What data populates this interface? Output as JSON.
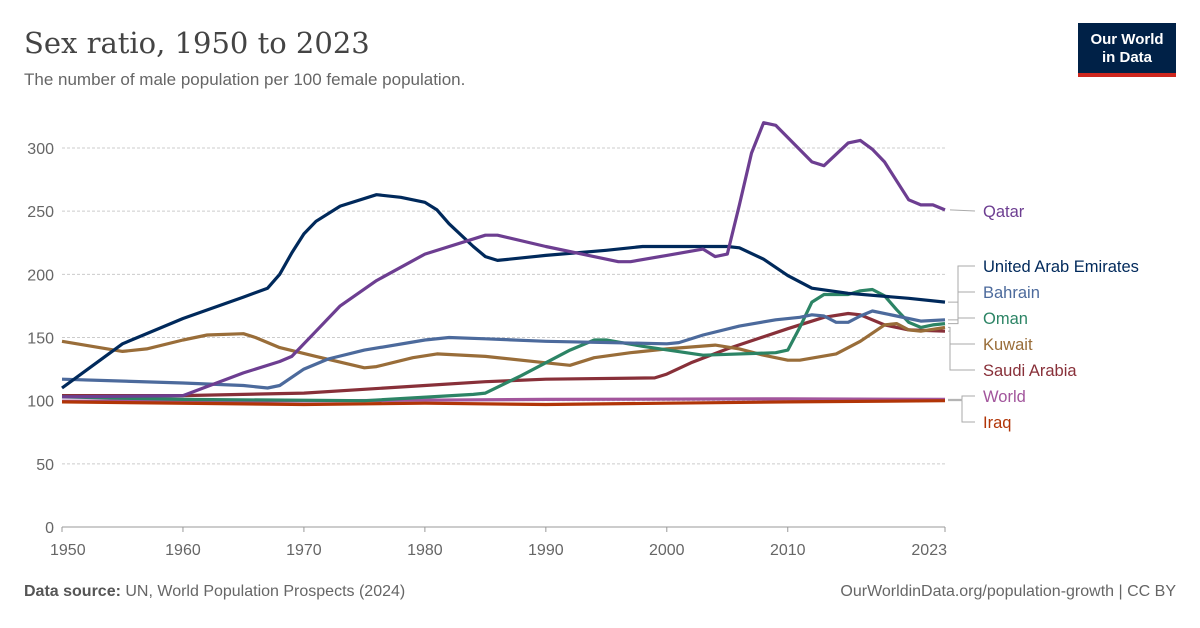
{
  "header": {
    "title": "Sex ratio, 1950 to 2023",
    "subtitle": "The number of male population per 100 female population."
  },
  "logo": {
    "line1": "Our World",
    "line2": "in Data"
  },
  "footer": {
    "source_label": "Data source:",
    "source": "UN, World Population Prospects (2024)",
    "credit": "OurWorldinData.org/population-growth | CC BY"
  },
  "chart_data": {
    "type": "line",
    "title": "Sex ratio, 1950 to 2023",
    "xlabel": "",
    "ylabel": "",
    "xlim": [
      1950,
      2023
    ],
    "ylim": [
      0,
      300
    ],
    "x_ticks": [
      "1950",
      "1960",
      "1970",
      "1980",
      "1990",
      "2000",
      "2010",
      "2023"
    ],
    "y_ticks": [
      "0",
      "50",
      "100",
      "150",
      "200",
      "250",
      "300"
    ],
    "grid": "horizontal dotted",
    "legend": "right, line-end labels",
    "series": [
      {
        "name": "Qatar",
        "color": "#6d3e91",
        "points": [
          [
            1950,
            103
          ],
          [
            1960,
            104
          ],
          [
            1965,
            122
          ],
          [
            1968,
            131
          ],
          [
            1969,
            135
          ],
          [
            1971,
            155
          ],
          [
            1973,
            175
          ],
          [
            1976,
            195
          ],
          [
            1980,
            216
          ],
          [
            1985,
            231
          ],
          [
            1986,
            231
          ],
          [
            1990,
            222
          ],
          [
            1996,
            210
          ],
          [
            1997,
            210
          ],
          [
            2000,
            215
          ],
          [
            2003,
            220
          ],
          [
            2004,
            214
          ],
          [
            2005,
            216
          ],
          [
            2006,
            255
          ],
          [
            2007,
            296
          ],
          [
            2008,
            320
          ],
          [
            2009,
            318
          ],
          [
            2012,
            289
          ],
          [
            2013,
            286
          ],
          [
            2015,
            304
          ],
          [
            2016,
            306
          ],
          [
            2017,
            299
          ],
          [
            2018,
            289
          ],
          [
            2020,
            259
          ],
          [
            2021,
            255
          ],
          [
            2022,
            255
          ],
          [
            2023,
            251
          ]
        ]
      },
      {
        "name": "United Arab Emirates",
        "color": "#00295b",
        "points": [
          [
            1950,
            110
          ],
          [
            1955,
            145
          ],
          [
            1960,
            165
          ],
          [
            1965,
            182
          ],
          [
            1967,
            189
          ],
          [
            1968,
            200
          ],
          [
            1969,
            217
          ],
          [
            1970,
            232
          ],
          [
            1971,
            242
          ],
          [
            1973,
            254
          ],
          [
            1976,
            263
          ],
          [
            1978,
            261
          ],
          [
            1980,
            257
          ],
          [
            1981,
            251
          ],
          [
            1982,
            240
          ],
          [
            1984,
            222
          ],
          [
            1985,
            214
          ],
          [
            1986,
            211
          ],
          [
            1990,
            215
          ],
          [
            1995,
            219
          ],
          [
            1998,
            222
          ],
          [
            2005,
            222
          ],
          [
            2006,
            221
          ],
          [
            2008,
            212
          ],
          [
            2010,
            199
          ],
          [
            2012,
            189
          ],
          [
            2015,
            185
          ],
          [
            2020,
            181
          ],
          [
            2023,
            178
          ]
        ]
      },
      {
        "name": "Bahrain",
        "color": "#4c6a9c",
        "points": [
          [
            1950,
            117
          ],
          [
            1960,
            114
          ],
          [
            1965,
            112
          ],
          [
            1967,
            110
          ],
          [
            1968,
            112
          ],
          [
            1970,
            125
          ],
          [
            1972,
            133
          ],
          [
            1975,
            140
          ],
          [
            1980,
            148
          ],
          [
            1982,
            150
          ],
          [
            1985,
            149
          ],
          [
            1990,
            147
          ],
          [
            2000,
            145
          ],
          [
            2001,
            146
          ],
          [
            2003,
            152
          ],
          [
            2006,
            159
          ],
          [
            2009,
            164
          ],
          [
            2011,
            166
          ],
          [
            2012,
            168
          ],
          [
            2013,
            167
          ],
          [
            2014,
            162
          ],
          [
            2015,
            162
          ],
          [
            2016,
            167
          ],
          [
            2017,
            171
          ],
          [
            2019,
            167
          ],
          [
            2021,
            163
          ],
          [
            2023,
            164
          ]
        ]
      },
      {
        "name": "Oman",
        "color": "#2c8465",
        "points": [
          [
            1950,
            103
          ],
          [
            1960,
            101
          ],
          [
            1975,
            100
          ],
          [
            1984,
            105
          ],
          [
            1985,
            106
          ],
          [
            1988,
            120
          ],
          [
            1992,
            140
          ],
          [
            1994,
            148
          ],
          [
            1995,
            148
          ],
          [
            1998,
            143
          ],
          [
            2003,
            136
          ],
          [
            2009,
            138
          ],
          [
            2010,
            140
          ],
          [
            2011,
            158
          ],
          [
            2012,
            178
          ],
          [
            2013,
            184
          ],
          [
            2015,
            184
          ],
          [
            2016,
            187
          ],
          [
            2017,
            188
          ],
          [
            2018,
            183
          ],
          [
            2019,
            172
          ],
          [
            2020,
            162
          ],
          [
            2021,
            158
          ],
          [
            2022,
            160
          ],
          [
            2023,
            161
          ]
        ]
      },
      {
        "name": "Kuwait",
        "color": "#996d39",
        "points": [
          [
            1950,
            147
          ],
          [
            1955,
            139
          ],
          [
            1957,
            141
          ],
          [
            1960,
            148
          ],
          [
            1962,
            152
          ],
          [
            1965,
            153
          ],
          [
            1966,
            150
          ],
          [
            1968,
            142
          ],
          [
            1971,
            135
          ],
          [
            1975,
            126
          ],
          [
            1976,
            127
          ],
          [
            1979,
            134
          ],
          [
            1981,
            137
          ],
          [
            1985,
            135
          ],
          [
            1990,
            130
          ],
          [
            1992,
            128
          ],
          [
            1994,
            134
          ],
          [
            1997,
            138
          ],
          [
            2000,
            141
          ],
          [
            2004,
            144
          ],
          [
            2006,
            141
          ],
          [
            2008,
            136
          ],
          [
            2010,
            132
          ],
          [
            2011,
            132
          ],
          [
            2014,
            137
          ],
          [
            2016,
            147
          ],
          [
            2018,
            160
          ],
          [
            2019,
            161
          ],
          [
            2020,
            156
          ],
          [
            2021,
            155
          ],
          [
            2023,
            158
          ]
        ]
      },
      {
        "name": "Saudi Arabia",
        "color": "#883039",
        "points": [
          [
            1950,
            104
          ],
          [
            1960,
            104
          ],
          [
            1970,
            106
          ],
          [
            1980,
            112
          ],
          [
            1985,
            115
          ],
          [
            1990,
            117
          ],
          [
            1999,
            118
          ],
          [
            2000,
            121
          ],
          [
            2002,
            130
          ],
          [
            2005,
            141
          ],
          [
            2010,
            157
          ],
          [
            2013,
            166
          ],
          [
            2015,
            169
          ],
          [
            2016,
            168
          ],
          [
            2018,
            160
          ],
          [
            2020,
            156
          ],
          [
            2023,
            155
          ]
        ]
      },
      {
        "name": "World",
        "color": "#a2559c",
        "points": [
          [
            1950,
            99.6
          ],
          [
            1970,
            99.8
          ],
          [
            1990,
            101
          ],
          [
            2010,
            101.5
          ],
          [
            2023,
            101
          ]
        ]
      },
      {
        "name": "Iraq",
        "color": "#b13507",
        "points": [
          [
            1950,
            99
          ],
          [
            1970,
            97
          ],
          [
            1980,
            98
          ],
          [
            1990,
            97
          ],
          [
            2000,
            98
          ],
          [
            2010,
            99
          ],
          [
            2023,
            100
          ]
        ]
      }
    ]
  }
}
